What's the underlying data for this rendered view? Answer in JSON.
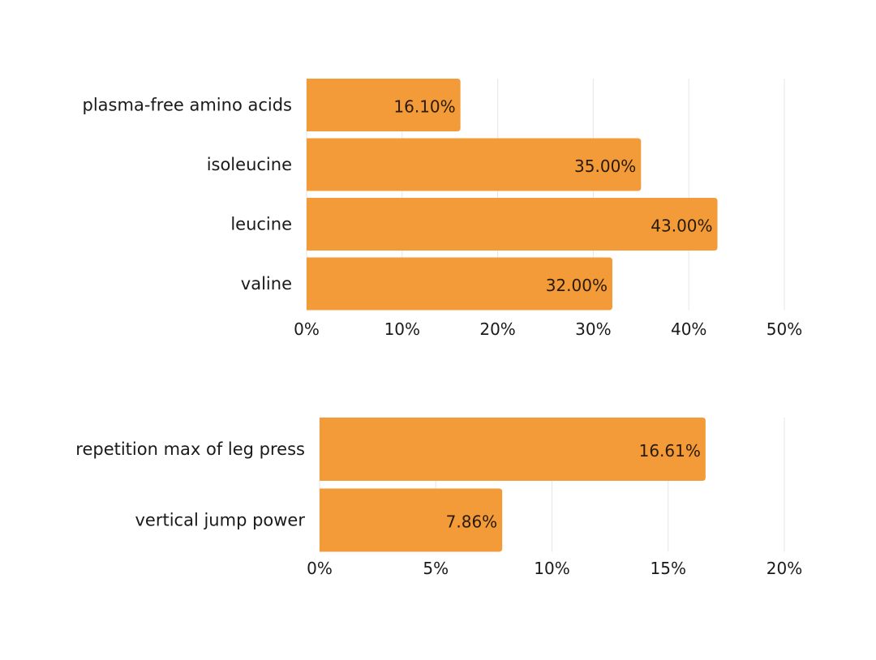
{
  "colors": {
    "bar": "#F29B38",
    "grid": "#E6E6E6",
    "text": "#1a1a1a",
    "value_text": "#2a1a0a"
  },
  "chart_data": [
    {
      "type": "bar",
      "orientation": "horizontal",
      "categories": [
        "plasma-free amino acids",
        "isoleucine",
        "leucine",
        "valine"
      ],
      "values": [
        16.1,
        35.0,
        43.0,
        32.0
      ],
      "value_labels": [
        "16.10%",
        "35.00%",
        "43.00%",
        "32.00%"
      ],
      "x_ticks": [
        "0%",
        "10%",
        "20%",
        "30%",
        "40%",
        "50%"
      ],
      "xlim": [
        0,
        50
      ],
      "title": "",
      "xlabel": "",
      "ylabel": "",
      "grid": true,
      "legend": "none"
    },
    {
      "type": "bar",
      "orientation": "horizontal",
      "categories": [
        "repetition max of leg press",
        "vertical jump power"
      ],
      "values": [
        16.61,
        7.86
      ],
      "value_labels": [
        "16.61%",
        "7.86%"
      ],
      "x_ticks": [
        "0%",
        "5%",
        "10%",
        "15%",
        "20%"
      ],
      "xlim": [
        0,
        20
      ],
      "title": "",
      "xlabel": "",
      "ylabel": "",
      "grid": true,
      "legend": "none"
    }
  ]
}
